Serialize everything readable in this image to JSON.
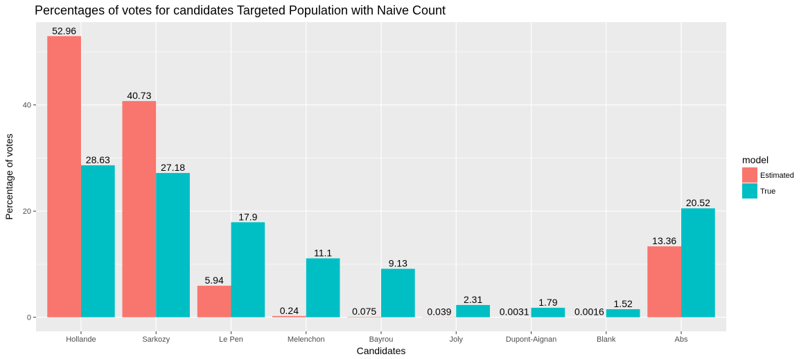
{
  "chart_data": {
    "type": "bar",
    "title": "Percentages of votes for candidates Targeted Population with Naive Count",
    "xlabel": "Candidates",
    "ylabel": "Percentage of votes",
    "categories": [
      "Hollande",
      "Sarkozy",
      "Le Pen",
      "Melenchon",
      "Bayrou",
      "Joly",
      "Dupont-Aignan",
      "Blank",
      "Abs"
    ],
    "series": [
      {
        "name": "Estimated",
        "color": "#F8766D",
        "values": [
          52.96,
          40.73,
          5.94,
          0.24,
          0.075,
          0.039,
          0.0031,
          0.0016,
          13.36
        ],
        "labels": [
          "52.96",
          "40.73",
          "5.94",
          "0.24",
          "0.075",
          "0.039",
          "0.0031",
          "0.0016",
          "13.36"
        ]
      },
      {
        "name": "True",
        "color": "#00BFC4",
        "values": [
          28.63,
          27.18,
          17.9,
          11.1,
          9.13,
          2.31,
          1.79,
          1.52,
          20.52
        ],
        "labels": [
          "28.63",
          "27.18",
          "17.9",
          "11.1",
          "9.13",
          "2.31",
          "1.79",
          "1.52",
          "20.52"
        ]
      }
    ],
    "ylim": [
      -2.65,
      55.6
    ],
    "yticks": [
      0,
      20,
      40
    ],
    "grid": true,
    "panel_color": "#EBEBEB",
    "legend": {
      "title": "model",
      "position": "right"
    }
  }
}
